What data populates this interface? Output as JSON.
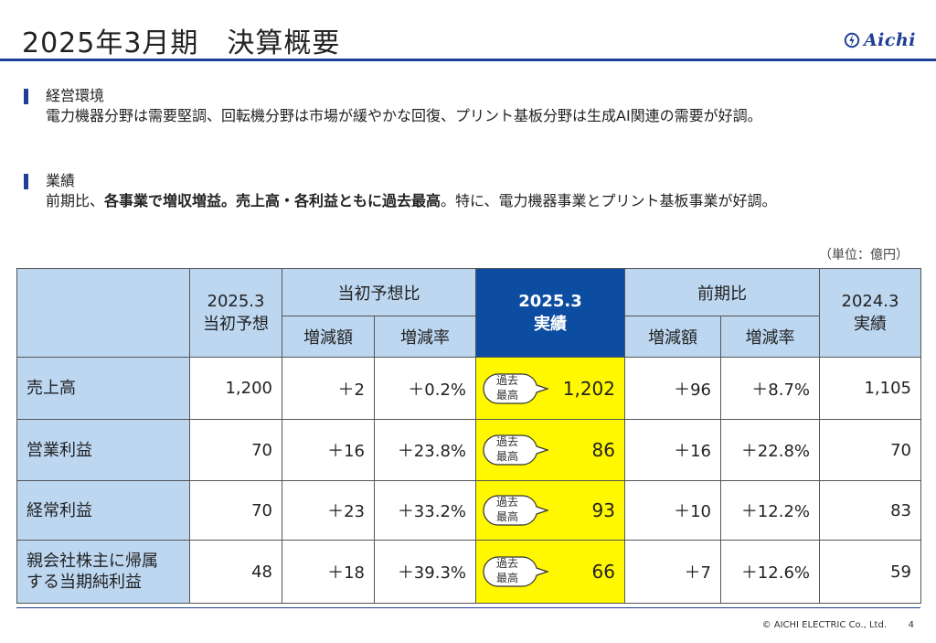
{
  "header": {
    "title": "2025年3月期　決算概要",
    "logo_text": "Aichi"
  },
  "sections": [
    {
      "heading": "経営環境",
      "body": "電力機器分野は需要堅調、回転機分野は市場が緩やかな回復、プリント基板分野は生成AI関連の需要が好調。"
    },
    {
      "heading": "業績",
      "body_parts": [
        "前期比、",
        "各事業で増収増益。売上高・各利益ともに過去最高",
        "。特に、電力機器事業とプリント基板事業が好調。"
      ]
    }
  ],
  "unit_note": "（単位：億円）",
  "table": {
    "headers": {
      "initial_forecast": [
        "2025.3",
        "当初予想"
      ],
      "vs_forecast": "当初予想比",
      "actual": [
        "2025.3",
        "実績"
      ],
      "yoy": "前期比",
      "prev_actual": [
        "2024.3",
        "実績"
      ],
      "change_amount": "増減額",
      "change_rate": "増減率"
    },
    "badge": [
      "過去",
      "最高"
    ],
    "rows": [
      {
        "label": [
          "売上高"
        ],
        "forecast": "1,200",
        "vs_forecast_amount": "＋2",
        "vs_forecast_rate": "＋0.2%",
        "actual": "1,202",
        "yoy_amount": "＋96",
        "yoy_rate": "＋8.7%",
        "prev": "1,105"
      },
      {
        "label": [
          "営業利益"
        ],
        "forecast": "70",
        "vs_forecast_amount": "＋16",
        "vs_forecast_rate": "＋23.8%",
        "actual": "86",
        "yoy_amount": "＋16",
        "yoy_rate": "＋22.8%",
        "prev": "70"
      },
      {
        "label": [
          "経常利益"
        ],
        "forecast": "70",
        "vs_forecast_amount": "＋23",
        "vs_forecast_rate": "＋33.2%",
        "actual": "93",
        "yoy_amount": "＋10",
        "yoy_rate": "＋12.2%",
        "prev": "83"
      },
      {
        "label": [
          "親会社株主に帰属",
          "する当期純利益"
        ],
        "forecast": "48",
        "vs_forecast_amount": "＋18",
        "vs_forecast_rate": "＋39.3%",
        "actual": "66",
        "yoy_amount": "＋7",
        "yoy_rate": "＋12.6%",
        "prev": "59"
      }
    ]
  },
  "footer": {
    "copyright": "© AICHI ELECTRIC Co., Ltd.",
    "page": "4"
  },
  "colors": {
    "brand": "#1f3f96",
    "header_fill": "#bdd7f1",
    "actual_header": "#0c4da2",
    "highlight": "#fff800"
  }
}
